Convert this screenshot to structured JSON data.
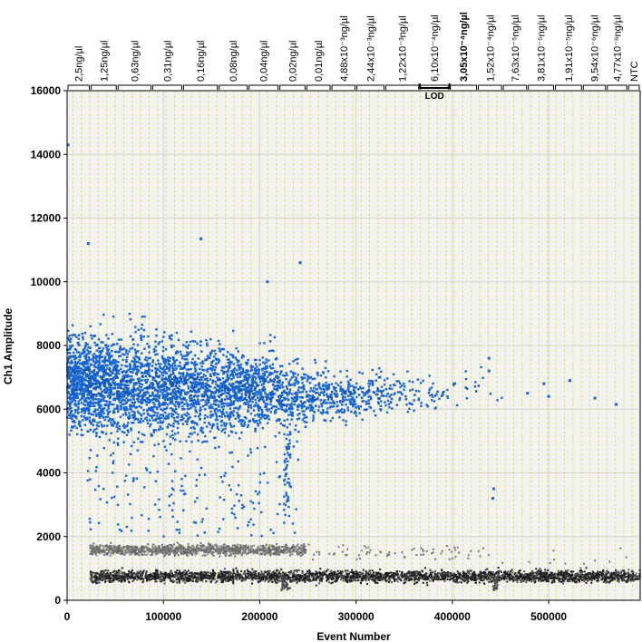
{
  "chart_data": {
    "type": "scatter",
    "title": "",
    "xlabel": "Event Number",
    "ylabel": "Ch1 Amplitude",
    "xlim": [
      0,
      595000
    ],
    "ylim": [
      0,
      16000
    ],
    "x_ticks": [
      0,
      100000,
      200000,
      300000,
      400000,
      500000
    ],
    "x_tick_labels": [
      "0",
      "100000",
      "200000",
      "300000",
      "400000",
      "500000"
    ],
    "y_ticks": [
      0,
      2000,
      4000,
      6000,
      8000,
      10000,
      12000,
      14000,
      16000
    ],
    "y_tick_labels": [
      "0",
      "2000",
      "4000",
      "6000",
      "8000",
      "10000",
      "12000",
      "14000",
      "16000"
    ],
    "grid": true,
    "threshold": 2000,
    "colors": {
      "positive": "#1565d8",
      "negative": "#3a3a3a",
      "well_divider": "#e8e05a",
      "plot_background": "#f2f2f2"
    },
    "sample_groups": [
      {
        "label": "2,5ng/µl",
        "start": 0,
        "end": 24000,
        "bold": false
      },
      {
        "label": "1,25ng/µl",
        "start": 24000,
        "end": 52000,
        "bold": false
      },
      {
        "label": "0,63ng/µl",
        "start": 52000,
        "end": 88000,
        "bold": false
      },
      {
        "label": "0,31ng/µl",
        "start": 88000,
        "end": 120000,
        "bold": false
      },
      {
        "label": "0,16ng/µl",
        "start": 120000,
        "end": 157000,
        "bold": false
      },
      {
        "label": "0,08ng/µl",
        "start": 157000,
        "end": 188000,
        "bold": false
      },
      {
        "label": "0,04ng/µl",
        "start": 188000,
        "end": 220000,
        "bold": false
      },
      {
        "label": "0,02ng/µl",
        "start": 220000,
        "end": 248000,
        "bold": false
      },
      {
        "label": "0,01ng/µl",
        "start": 248000,
        "end": 274000,
        "bold": false
      },
      {
        "label": "4,88x10⁻³ng/µl",
        "start": 274000,
        "end": 300000,
        "bold": false
      },
      {
        "label": "2,44x10⁻³ng/µl",
        "start": 300000,
        "end": 330000,
        "bold": false
      },
      {
        "label": "1,22x10⁻³ng/µl",
        "start": 330000,
        "end": 366000,
        "bold": false
      },
      {
        "label": "6,10x10⁻⁴ng/µl",
        "start": 366000,
        "end": 397000,
        "bold": false
      },
      {
        "label": "3,05x10⁻⁴ng/µl",
        "start": 397000,
        "end": 426000,
        "bold": true
      },
      {
        "label": "1,52x10⁻⁴ng/µl",
        "start": 426000,
        "end": 452000,
        "bold": false
      },
      {
        "label": "7,63x10⁻⁵ng/µl",
        "start": 452000,
        "end": 478000,
        "bold": false
      },
      {
        "label": "3,81x10⁻⁵ng/µl",
        "start": 478000,
        "end": 506000,
        "bold": false
      },
      {
        "label": "1,91x10⁻⁵ng/µl",
        "start": 506000,
        "end": 535000,
        "bold": false
      },
      {
        "label": "9,54x10⁻⁶ng/µl",
        "start": 535000,
        "end": 560000,
        "bold": false
      },
      {
        "label": "4,77x10⁻⁶ng/µl",
        "start": 560000,
        "end": 582000,
        "bold": false
      },
      {
        "label": "NTC",
        "start": 582000,
        "end": 595000,
        "bold": false
      }
    ],
    "annotations": [
      {
        "text": "LOD",
        "x_start": 366000,
        "x_end": 397000
      }
    ],
    "series": [
      {
        "class": "positive",
        "clusters": [
          {
            "x_start": 0,
            "x_end": 24000,
            "y_center": 6900,
            "y_spread": 1300,
            "count": 520
          },
          {
            "x_start": 24000,
            "x_end": 52000,
            "y_center": 6800,
            "y_spread": 1400,
            "count": 480
          },
          {
            "x_start": 52000,
            "x_end": 88000,
            "y_center": 6700,
            "y_spread": 1400,
            "count": 480
          },
          {
            "x_start": 88000,
            "x_end": 120000,
            "y_center": 6700,
            "y_spread": 1300,
            "count": 440
          },
          {
            "x_start": 120000,
            "x_end": 157000,
            "y_center": 6700,
            "y_spread": 1300,
            "count": 420
          },
          {
            "x_start": 157000,
            "x_end": 188000,
            "y_center": 6600,
            "y_spread": 1200,
            "count": 380
          },
          {
            "x_start": 188000,
            "x_end": 220000,
            "y_center": 6600,
            "y_spread": 1100,
            "count": 320
          },
          {
            "x_start": 220000,
            "x_end": 248000,
            "y_center": 6400,
            "y_spread": 900,
            "count": 200
          },
          {
            "x_start": 248000,
            "x_end": 274000,
            "y_center": 6400,
            "y_spread": 700,
            "count": 150
          },
          {
            "x_start": 274000,
            "x_end": 300000,
            "y_center": 6400,
            "y_spread": 650,
            "count": 120
          },
          {
            "x_start": 300000,
            "x_end": 330000,
            "y_center": 6500,
            "y_spread": 600,
            "count": 90
          },
          {
            "x_start": 330000,
            "x_end": 366000,
            "y_center": 6500,
            "y_spread": 550,
            "count": 60
          },
          {
            "x_start": 366000,
            "x_end": 397000,
            "y_center": 6500,
            "y_spread": 500,
            "count": 30
          },
          {
            "x_start": 397000,
            "x_end": 426000,
            "y_center": 6600,
            "y_spread": 500,
            "count": 12
          },
          {
            "x_start": 426000,
            "x_end": 452000,
            "y_center": 6700,
            "y_spread": 500,
            "count": 6
          }
        ],
        "isolated_points": [
          {
            "x": 1000,
            "y": 14300
          },
          {
            "x": 139000,
            "y": 11350
          },
          {
            "x": 22000,
            "y": 11200
          },
          {
            "x": 242000,
            "y": 10600
          },
          {
            "x": 208000,
            "y": 10000
          },
          {
            "x": 478000,
            "y": 6500
          },
          {
            "x": 495000,
            "y": 6800
          },
          {
            "x": 500000,
            "y": 6400
          },
          {
            "x": 522000,
            "y": 6900
          },
          {
            "x": 548000,
            "y": 6350
          },
          {
            "x": 570000,
            "y": 6150
          },
          {
            "x": 443000,
            "y": 3500
          },
          {
            "x": 442000,
            "y": 3200
          },
          {
            "x": 438000,
            "y": 7600
          },
          {
            "x": 438000,
            "y": 7200
          }
        ],
        "rain": [
          {
            "x_start": 20000,
            "x_end": 240000,
            "y_min": 2000,
            "y_max": 5000,
            "count": 180
          },
          {
            "x_start": 225000,
            "x_end": 232000,
            "y_min": 2600,
            "y_max": 5500,
            "count": 50
          }
        ]
      },
      {
        "class": "negative",
        "bands": [
          {
            "x_start": 24000,
            "x_end": 595000,
            "y_center": 750,
            "y_spread": 90
          },
          {
            "x_start": 24000,
            "x_end": 248000,
            "y_center": 1580,
            "y_spread": 80
          }
        ],
        "scatter": [
          {
            "x_start": 248000,
            "x_end": 440000,
            "y_center": 1500,
            "y_spread": 120,
            "count": 70
          },
          {
            "x_start": 440000,
            "x_end": 595000,
            "y_center": 1100,
            "y_spread": 250,
            "count": 20
          }
        ],
        "dips": [
          {
            "x_start": 222000,
            "x_end": 232000,
            "y_min": 300,
            "y_max": 750
          },
          {
            "x_start": 442000,
            "x_end": 447000,
            "y_min": 300,
            "y_max": 750
          }
        ]
      }
    ]
  }
}
